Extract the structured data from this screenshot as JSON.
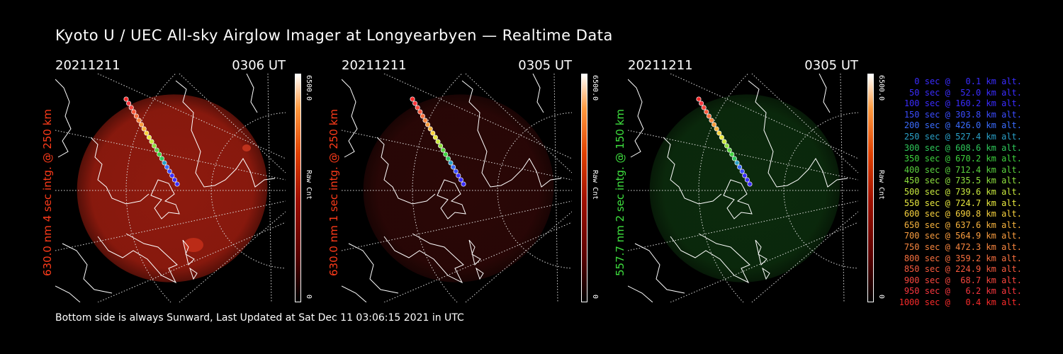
{
  "title": "Kyoto U / UEC All-sky Airglow Imager at Longyearbyen — Realtime Data",
  "panels": [
    {
      "date": "20211211",
      "time": "0306 UT",
      "label": "630.0 nm 4 sec intg. @ 250 km",
      "label_color": "#ff3b1a",
      "cmax": "6500.0",
      "cmin": "0",
      "unit": "Raw Cnt",
      "glow": "#8e1a0e"
    },
    {
      "date": "20211211",
      "time": "0305 UT",
      "label": "630.0 nm 1 sec intg. @ 250 km",
      "label_color": "#ff3b1a",
      "cmax": "6500.0",
      "cmin": "0",
      "unit": "Raw Cnt",
      "glow": "#2a0706"
    },
    {
      "date": "20211211",
      "time": "0305 UT",
      "label": "557.7 nm 2 sec intg. @ 150 km",
      "label_color": "#3ee03e",
      "cmax": "6500.0",
      "cmin": "0",
      "unit": "Raw Cnt",
      "glow": "#0b2a0c"
    }
  ],
  "legend": [
    {
      "text": "0 sec @   0.1 km alt.",
      "color": "#3a2cff"
    },
    {
      "text": "50 sec @  52.0 km alt.",
      "color": "#3a2cff"
    },
    {
      "text": "100 sec @ 160.2 km alt.",
      "color": "#3a2cff"
    },
    {
      "text": "150 sec @ 303.8 km alt.",
      "color": "#3a4cff"
    },
    {
      "text": "200 sec @ 426.0 km alt.",
      "color": "#3a6cff"
    },
    {
      "text": "250 sec @ 527.4 km alt.",
      "color": "#2aa0c8"
    },
    {
      "text": "300 sec @ 608.6 km alt.",
      "color": "#2ec85a"
    },
    {
      "text": "350 sec @ 670.2 km alt.",
      "color": "#3ed23e"
    },
    {
      "text": "400 sec @ 712.4 km alt.",
      "color": "#5ad23e"
    },
    {
      "text": "450 sec @ 735.5 km alt.",
      "color": "#8ee03e"
    },
    {
      "text": "500 sec @ 739.6 km alt.",
      "color": "#c8e83e"
    },
    {
      "text": "550 sec @ 724.7 km alt.",
      "color": "#e8e83e"
    },
    {
      "text": "600 sec @ 690.8 km alt.",
      "color": "#f8d23e"
    },
    {
      "text": "650 sec @ 637.6 km alt.",
      "color": "#f8b43e"
    },
    {
      "text": "700 sec @ 564.9 km alt.",
      "color": "#f89c3e"
    },
    {
      "text": "750 sec @ 472.3 km alt.",
      "color": "#f8863e"
    },
    {
      "text": "800 sec @ 359.2 km alt.",
      "color": "#f8703e"
    },
    {
      "text": "850 sec @ 224.9 km alt.",
      "color": "#f85a3e"
    },
    {
      "text": "900 sec @  68.7 km alt.",
      "color": "#f8463e"
    },
    {
      "text": "950 sec @   6.2 km alt.",
      "color": "#f8363e"
    },
    {
      "text": "1000 sec @   0.4 km alt.",
      "color": "#f82a2a"
    }
  ],
  "footer": "Bottom side is always Sunward, Last Updated at Sat Dec 11 03:06:15 2021 in UTC"
}
